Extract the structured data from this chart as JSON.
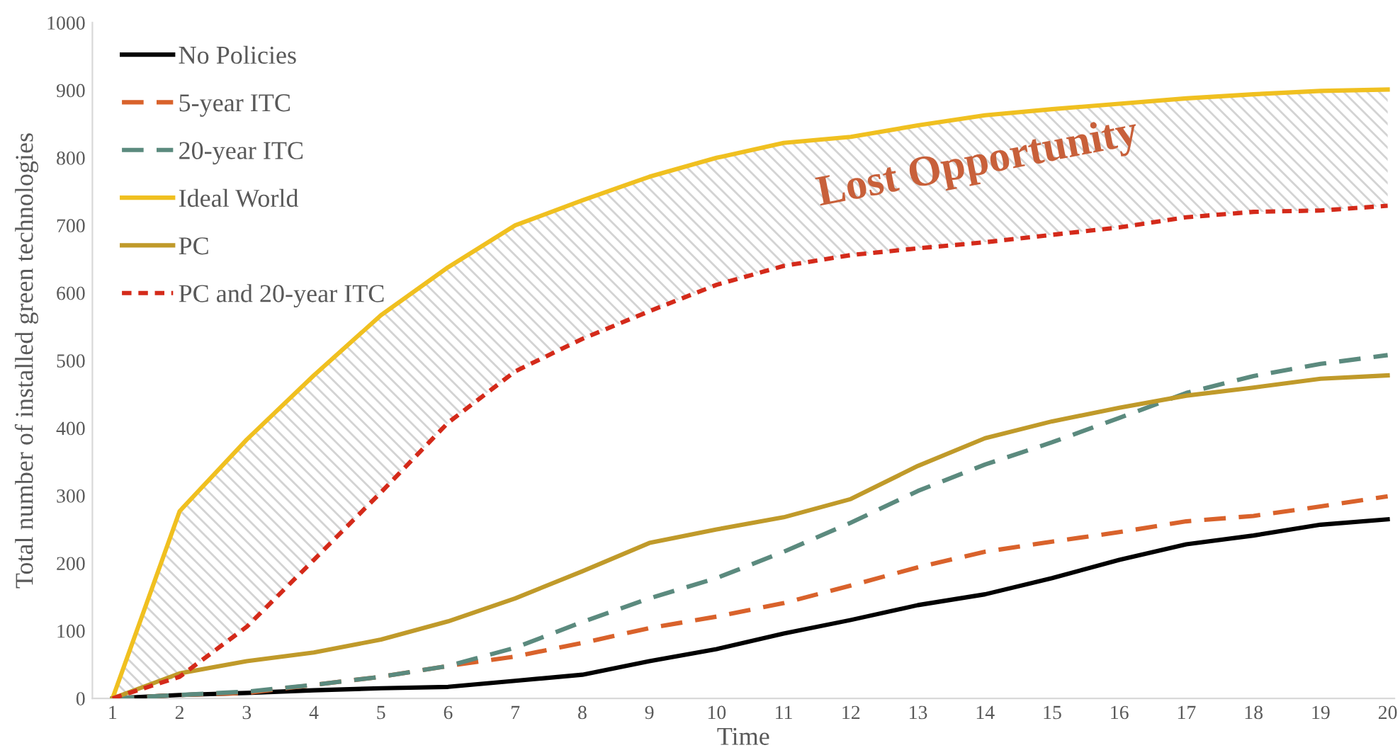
{
  "chart_data": {
    "type": "line",
    "categories": [
      "1",
      "2",
      "3",
      "4",
      "5",
      "6",
      "7",
      "8",
      "9",
      "10",
      "11",
      "12",
      "13",
      "14",
      "15",
      "16",
      "17",
      "18",
      "19",
      "20"
    ],
    "xlabel": "Time",
    "ylabel": "Total number of installed green technologies",
    "ylim": [
      0,
      1000
    ],
    "yticks": [
      0,
      100,
      200,
      300,
      400,
      500,
      600,
      700,
      800,
      900,
      1000
    ],
    "grid": false,
    "legend": "top left",
    "series": [
      {
        "name": "No Policies",
        "color": "#000000",
        "line_style": "solid",
        "values": [
          0,
          5,
          8,
          12,
          15,
          17,
          26,
          35,
          55,
          73,
          96,
          116,
          138,
          154,
          178,
          205,
          228,
          241,
          257,
          265
        ]
      },
      {
        "name": "5-year ITC",
        "color": "#d9622b",
        "line_style": "dashed",
        "values": [
          0,
          5,
          8,
          20,
          32,
          48,
          62,
          82,
          104,
          121,
          141,
          167,
          194,
          217,
          232,
          246,
          262,
          270,
          284,
          299
        ]
      },
      {
        "name": "20-year ITC",
        "color": "#5b8a7e",
        "line_style": "dashed",
        "values": [
          0,
          5,
          10,
          20,
          32,
          48,
          75,
          113,
          148,
          178,
          217,
          260,
          307,
          346,
          379,
          415,
          452,
          477,
          495,
          508
        ]
      },
      {
        "name": "Ideal World",
        "color": "#f0c020",
        "line_style": "solid",
        "values": [
          0,
          277,
          383,
          478,
          567,
          638,
          700,
          737,
          772,
          800,
          822,
          831,
          848,
          863,
          872,
          880,
          888,
          894,
          899,
          901
        ],
        "lower": [
          0,
          32,
          106,
          205,
          305,
          408,
          484,
          532,
          573,
          612,
          640,
          656,
          666,
          675,
          686,
          697,
          712,
          720,
          722,
          729
        ],
        "upper": [
          0,
          277,
          383,
          478,
          567,
          638,
          700,
          737,
          772,
          800,
          822,
          831,
          848,
          863,
          872,
          880,
          888,
          894,
          899,
          901
        ]
      },
      {
        "name": "PC",
        "color": "#c09a2a",
        "line_style": "solid",
        "values": [
          0,
          37,
          55,
          68,
          87,
          114,
          148,
          188,
          230,
          250,
          268,
          295,
          344,
          385,
          410,
          430,
          448,
          460,
          473,
          478
        ]
      },
      {
        "name": "PC and 20-year ITC",
        "color": "#d42a1a",
        "line_style": "dotted",
        "values": [
          0,
          32,
          106,
          205,
          305,
          408,
          484,
          532,
          573,
          612,
          640,
          656,
          666,
          675,
          686,
          697,
          712,
          720,
          722,
          729
        ]
      }
    ],
    "annotations": [
      "Lost Opportunity"
    ]
  }
}
